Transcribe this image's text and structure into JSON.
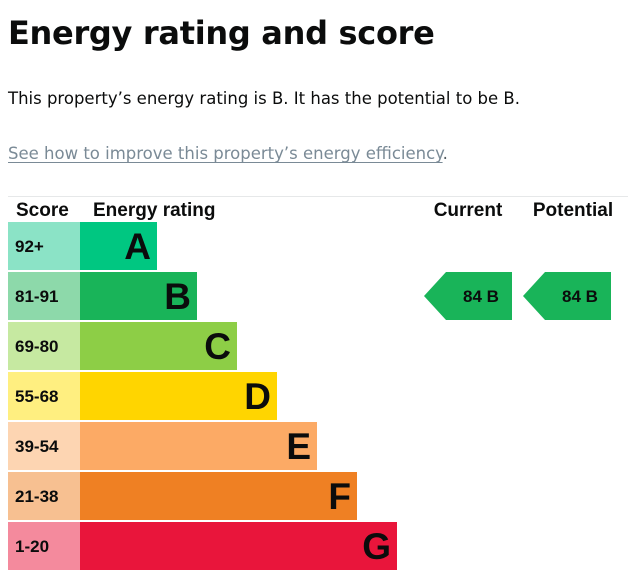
{
  "title": "Energy rating and score",
  "summary": "This property’s energy rating is B. It has the potential to be B.",
  "improve": {
    "link_text": "See how to improve this property’s energy efficiency",
    "suffix": "."
  },
  "chart_data": {
    "type": "bar",
    "headers": {
      "score": "Score",
      "rating": "Energy rating",
      "current": "Current",
      "potential": "Potential"
    },
    "bands": [
      {
        "score": "92+",
        "rating": "A",
        "color": "#00c781",
        "light": "#8be3c6"
      },
      {
        "score": "81-91",
        "rating": "B",
        "color": "#19b459",
        "light": "#8dd9aa"
      },
      {
        "score": "69-80",
        "rating": "C",
        "color": "#8dce46",
        "light": "#c6e9a1"
      },
      {
        "score": "55-68",
        "rating": "D",
        "color": "#ffd500",
        "light": "#ffef80"
      },
      {
        "score": "39-54",
        "rating": "E",
        "color": "#fcaa65",
        "light": "#fdd5b2"
      },
      {
        "score": "21-38",
        "rating": "F",
        "color": "#ef8023",
        "light": "#f7c091"
      },
      {
        "score": "1-20",
        "rating": "G",
        "color": "#e9153b",
        "light": "#f48a9d"
      }
    ],
    "current": {
      "score": 84,
      "rating": "B",
      "label": "84  B"
    },
    "potential": {
      "score": 84,
      "rating": "B",
      "label": "84  B"
    }
  }
}
